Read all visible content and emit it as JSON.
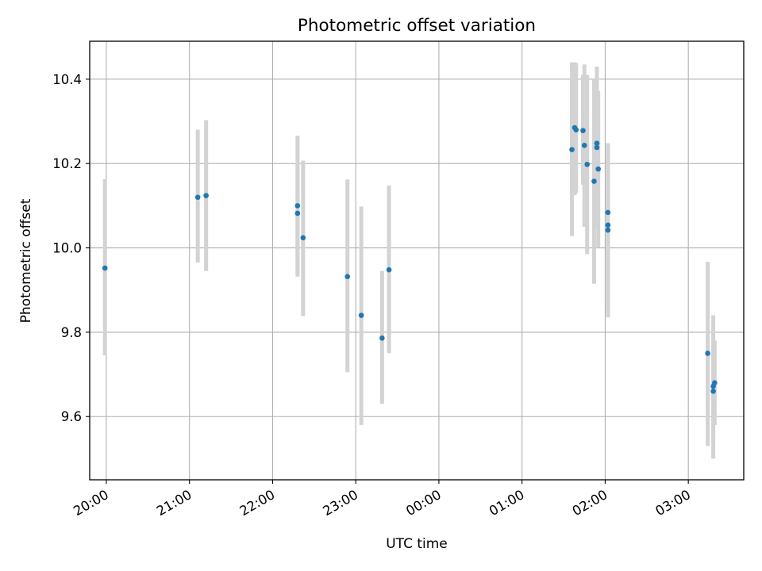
{
  "chart_data": {
    "type": "scatter",
    "title": "Photometric offset variation",
    "xlabel": "UTC time",
    "ylabel": "Photometric offset",
    "grid": true,
    "xlim": [
      "19:48",
      "03:40"
    ],
    "ylim": [
      9.45,
      10.49
    ],
    "x_ticks": [
      "20:00",
      "21:00",
      "22:00",
      "23:00",
      "00:00",
      "01:00",
      "02:00",
      "03:00"
    ],
    "y_ticks": [
      "9.6",
      "9.8",
      "10.0",
      "10.2",
      "10.4"
    ],
    "errorbar_color": "#d3d3d3",
    "marker_color": "#1f77b4",
    "points": [
      {
        "x": "19:59",
        "y": 9.952,
        "low": 9.745,
        "high": 10.163
      },
      {
        "x": "21:06",
        "y": 10.12,
        "low": 9.965,
        "high": 10.28
      },
      {
        "x": "21:12",
        "y": 10.124,
        "low": 9.945,
        "high": 10.303
      },
      {
        "x": "22:18",
        "y": 10.1,
        "low": 9.932,
        "high": 10.266
      },
      {
        "x": "22:18",
        "y": 10.082,
        "low": 9.94,
        "high": 10.2
      },
      {
        "x": "22:22",
        "y": 10.024,
        "low": 9.838,
        "high": 10.207
      },
      {
        "x": "22:54",
        "y": 9.932,
        "low": 9.705,
        "high": 10.162
      },
      {
        "x": "23:04",
        "y": 9.84,
        "low": 9.58,
        "high": 10.098
      },
      {
        "x": "23:19",
        "y": 9.786,
        "low": 9.63,
        "high": 9.945
      },
      {
        "x": "23:24",
        "y": 9.948,
        "low": 9.75,
        "high": 10.148
      },
      {
        "x": "01:36",
        "y": 10.233,
        "low": 10.028,
        "high": 10.44
      },
      {
        "x": "01:38",
        "y": 10.285,
        "low": 10.125,
        "high": 10.44
      },
      {
        "x": "01:39",
        "y": 10.28,
        "low": 10.13,
        "high": 10.438
      },
      {
        "x": "01:44",
        "y": 10.278,
        "low": 10.15,
        "high": 10.41
      },
      {
        "x": "01:45",
        "y": 10.243,
        "low": 10.05,
        "high": 10.435
      },
      {
        "x": "01:47",
        "y": 10.198,
        "low": 9.985,
        "high": 10.41
      },
      {
        "x": "01:52",
        "y": 10.158,
        "low": 9.915,
        "high": 10.4
      },
      {
        "x": "01:54",
        "y": 10.238,
        "low": 10.05,
        "high": 10.43
      },
      {
        "x": "01:54",
        "y": 10.248,
        "low": 10.1,
        "high": 10.4
      },
      {
        "x": "01:55",
        "y": 10.187,
        "low": 10.0,
        "high": 10.372
      },
      {
        "x": "02:02",
        "y": 10.084,
        "low": 9.88,
        "high": 10.245
      },
      {
        "x": "02:02",
        "y": 10.054,
        "low": 9.86,
        "high": 10.248
      },
      {
        "x": "02:02",
        "y": 10.042,
        "low": 9.835,
        "high": 10.248
      },
      {
        "x": "03:14",
        "y": 9.75,
        "low": 9.53,
        "high": 9.967
      },
      {
        "x": "03:18",
        "y": 9.66,
        "low": 9.5,
        "high": 9.84
      },
      {
        "x": "03:18",
        "y": 9.672,
        "low": 9.54,
        "high": 9.79
      },
      {
        "x": "03:19",
        "y": 9.68,
        "low": 9.58,
        "high": 9.78
      }
    ]
  }
}
